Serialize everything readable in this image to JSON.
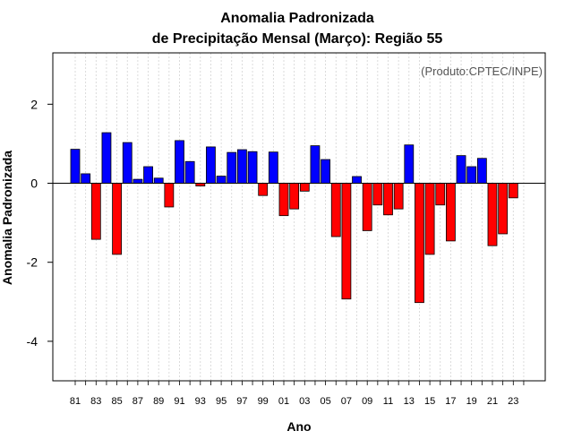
{
  "chart_data": {
    "type": "bar",
    "title": "Anomalia Padronizada",
    "subtitle": "de Precipitação Mensal (Março): Região 55",
    "xlabel": "Ano",
    "ylabel": "Anomalia Padronizada",
    "credit": "(Produto:CPTEC/INPE)",
    "ylim": [
      -5,
      3.3
    ],
    "yticks": [
      -4,
      -2,
      0,
      2
    ],
    "grid": true,
    "legend": "none",
    "colors": {
      "positive": "#0000ff",
      "negative": "#ff0000",
      "outline": "#000000",
      "grid": "#d3d3d3"
    },
    "categories": [
      "81",
      "82",
      "83",
      "84",
      "85",
      "86",
      "87",
      "88",
      "89",
      "90",
      "91",
      "92",
      "93",
      "94",
      "95",
      "96",
      "97",
      "98",
      "99",
      "00",
      "01",
      "02",
      "03",
      "04",
      "05",
      "06",
      "07",
      "08",
      "09",
      "10",
      "11",
      "12",
      "13",
      "14",
      "15",
      "16",
      "17",
      "18",
      "19",
      "20",
      "21",
      "22",
      "23",
      "24"
    ],
    "tick_labels": [
      "81",
      "83",
      "85",
      "87",
      "89",
      "91",
      "93",
      "95",
      "97",
      "99",
      "01",
      "03",
      "05",
      "07",
      "09",
      "11",
      "13",
      "15",
      "17",
      "19",
      "21",
      "23"
    ],
    "values": [
      0.86,
      0.24,
      -1.42,
      1.28,
      -1.8,
      1.03,
      0.1,
      0.42,
      0.13,
      -0.6,
      1.08,
      0.55,
      -0.07,
      0.92,
      0.18,
      0.78,
      0.85,
      0.8,
      -0.31,
      0.79,
      -0.82,
      -0.65,
      -0.2,
      0.95,
      0.6,
      -1.35,
      -2.93,
      0.17,
      -1.2,
      -0.55,
      -0.8,
      -0.65,
      0.97,
      -3.02,
      -1.8,
      -0.55,
      -1.46,
      0.7,
      0.42,
      0.63,
      -1.58,
      -1.28,
      -0.37,
      0.0
    ]
  }
}
